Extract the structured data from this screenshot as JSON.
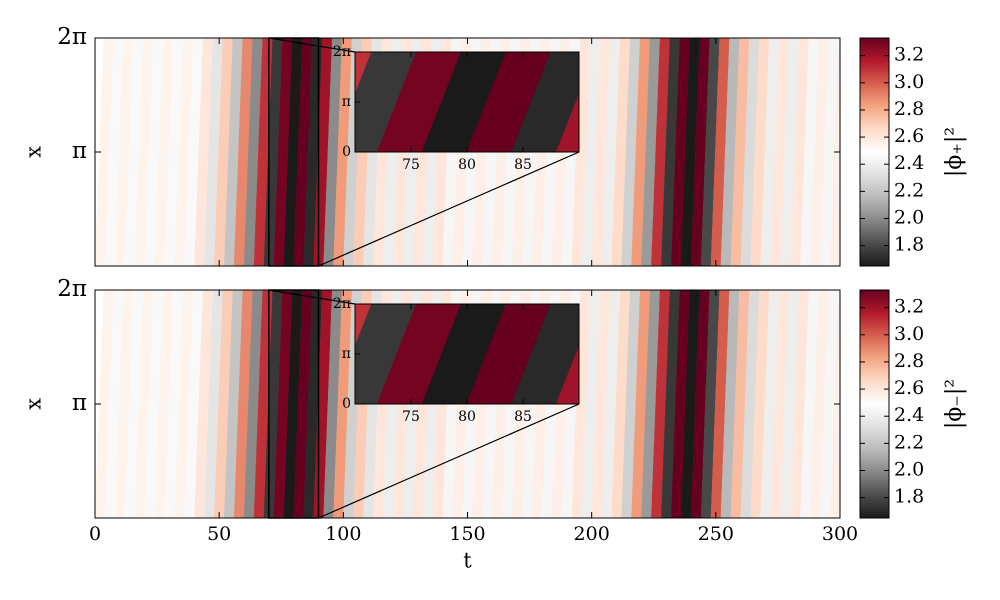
{
  "chart_data": [
    {
      "type": "heatmap",
      "ylabel": "x",
      "xlim": [
        0,
        300
      ],
      "ylim": [
        0,
        6.283
      ],
      "xticks": [
        0,
        50,
        100,
        150,
        200,
        250,
        300
      ],
      "xtick_labels": false,
      "yticks": [
        {
          "value": 3.1416,
          "label": "π"
        },
        {
          "value": 6.283,
          "label": "2π"
        }
      ],
      "x": [
        2,
        6,
        10,
        14,
        18,
        22,
        26,
        30,
        34,
        38,
        42,
        46,
        50,
        54,
        58,
        62,
        66,
        70,
        74,
        78,
        82,
        86,
        90,
        94,
        98,
        102,
        106,
        110,
        114,
        118,
        122,
        126,
        130,
        134,
        138,
        142,
        146,
        150,
        154,
        158,
        162,
        166,
        170,
        174,
        178,
        182,
        186,
        190,
        194,
        198,
        202,
        206,
        210,
        214,
        218,
        222,
        226,
        230,
        234,
        238,
        242,
        246,
        250,
        254,
        258,
        262,
        266,
        270,
        274,
        278,
        282,
        286,
        290,
        294,
        298
      ],
      "values": [
        2.54,
        2.46,
        2.54,
        2.46,
        2.54,
        2.46,
        2.54,
        2.46,
        2.54,
        2.46,
        2.6,
        2.35,
        2.7,
        2.2,
        2.9,
        2.0,
        3.1,
        1.75,
        3.3,
        1.65,
        3.35,
        1.7,
        3.2,
        2.0,
        2.85,
        2.25,
        2.7,
        2.35,
        2.6,
        2.4,
        2.6,
        2.4,
        2.6,
        2.4,
        2.6,
        2.44,
        2.56,
        2.44,
        2.56,
        2.44,
        2.56,
        2.44,
        2.56,
        2.44,
        2.56,
        2.44,
        2.56,
        2.44,
        2.6,
        2.4,
        2.6,
        2.4,
        2.65,
        2.25,
        2.85,
        2.05,
        3.1,
        1.75,
        3.35,
        1.65,
        3.35,
        1.8,
        3.0,
        2.15,
        2.75,
        2.3,
        2.65,
        2.4,
        2.6,
        2.4,
        2.6,
        2.44,
        2.56,
        2.44,
        2.56
      ],
      "colormap": [
        "#1a1a1a",
        "#4d4d4d",
        "#878787",
        "#bababa",
        "#e0e0e0",
        "#ffffff",
        "#fddbc7",
        "#f4a582",
        "#d6604d",
        "#b2182b",
        "#67001f"
      ],
      "colorbar": {
        "label": "|ϕ₊|²",
        "lim": [
          1.65,
          3.33
        ],
        "ticks": [
          1.8,
          {
            "value": 2,
            "label": "2.0"
          },
          2.2,
          2.4,
          2.6,
          2.8,
          {
            "value": 3,
            "label": "3.0"
          },
          3.2
        ]
      },
      "inset": {
        "xlim": [
          70,
          90
        ],
        "xticks": [
          75,
          80,
          85
        ],
        "yticks": [
          0,
          {
            "value": 3.1416,
            "label": "π"
          },
          {
            "value": 6.283,
            "label": "2π"
          }
        ]
      }
    },
    {
      "type": "heatmap",
      "ylabel": "x",
      "xlabel": "t",
      "xlim": [
        0,
        300
      ],
      "ylim": [
        0,
        6.283
      ],
      "xticks": [
        0,
        50,
        100,
        150,
        200,
        250,
        300
      ],
      "xtick_labels": true,
      "yticks": [
        {
          "value": 3.1416,
          "label": "π"
        },
        {
          "value": 6.283,
          "label": "2π"
        }
      ],
      "x": [
        2,
        6,
        10,
        14,
        18,
        22,
        26,
        30,
        34,
        38,
        42,
        46,
        50,
        54,
        58,
        62,
        66,
        70,
        74,
        78,
        82,
        86,
        90,
        94,
        98,
        102,
        106,
        110,
        114,
        118,
        122,
        126,
        130,
        134,
        138,
        142,
        146,
        150,
        154,
        158,
        162,
        166,
        170,
        174,
        178,
        182,
        186,
        190,
        194,
        198,
        202,
        206,
        210,
        214,
        218,
        222,
        226,
        230,
        234,
        238,
        242,
        246,
        250,
        254,
        258,
        262,
        266,
        270,
        274,
        278,
        282,
        286,
        290,
        294,
        298
      ],
      "values": [
        2.54,
        2.46,
        2.54,
        2.46,
        2.54,
        2.46,
        2.54,
        2.46,
        2.54,
        2.46,
        2.6,
        2.35,
        2.7,
        2.2,
        2.9,
        2.0,
        3.1,
        1.75,
        3.3,
        1.65,
        3.35,
        1.7,
        3.2,
        2.0,
        2.85,
        2.25,
        2.7,
        2.35,
        2.6,
        2.4,
        2.6,
        2.4,
        2.6,
        2.4,
        2.6,
        2.44,
        2.56,
        2.44,
        2.56,
        2.44,
        2.56,
        2.44,
        2.56,
        2.44,
        2.56,
        2.44,
        2.56,
        2.44,
        2.6,
        2.4,
        2.6,
        2.4,
        2.65,
        2.25,
        2.85,
        2.05,
        3.1,
        1.75,
        3.35,
        1.65,
        3.35,
        1.8,
        3.0,
        2.15,
        2.75,
        2.3,
        2.65,
        2.4,
        2.6,
        2.4,
        2.6,
        2.44,
        2.56,
        2.44,
        2.56
      ],
      "colormap": [
        "#1a1a1a",
        "#4d4d4d",
        "#878787",
        "#bababa",
        "#e0e0e0",
        "#ffffff",
        "#fddbc7",
        "#f4a582",
        "#d6604d",
        "#b2182b",
        "#67001f"
      ],
      "colorbar": {
        "label": "|ϕ₋|²",
        "lim": [
          1.65,
          3.33
        ],
        "ticks": [
          1.8,
          {
            "value": 2,
            "label": "2.0"
          },
          2.2,
          2.4,
          2.6,
          2.8,
          {
            "value": 3,
            "label": "3.0"
          },
          3.2
        ]
      },
      "inset": {
        "xlim": [
          70,
          90
        ],
        "xticks": [
          75,
          80,
          85
        ],
        "yticks": [
          0,
          {
            "value": 3.1416,
            "label": "π"
          },
          {
            "value": 6.283,
            "label": "2π"
          }
        ]
      }
    }
  ]
}
